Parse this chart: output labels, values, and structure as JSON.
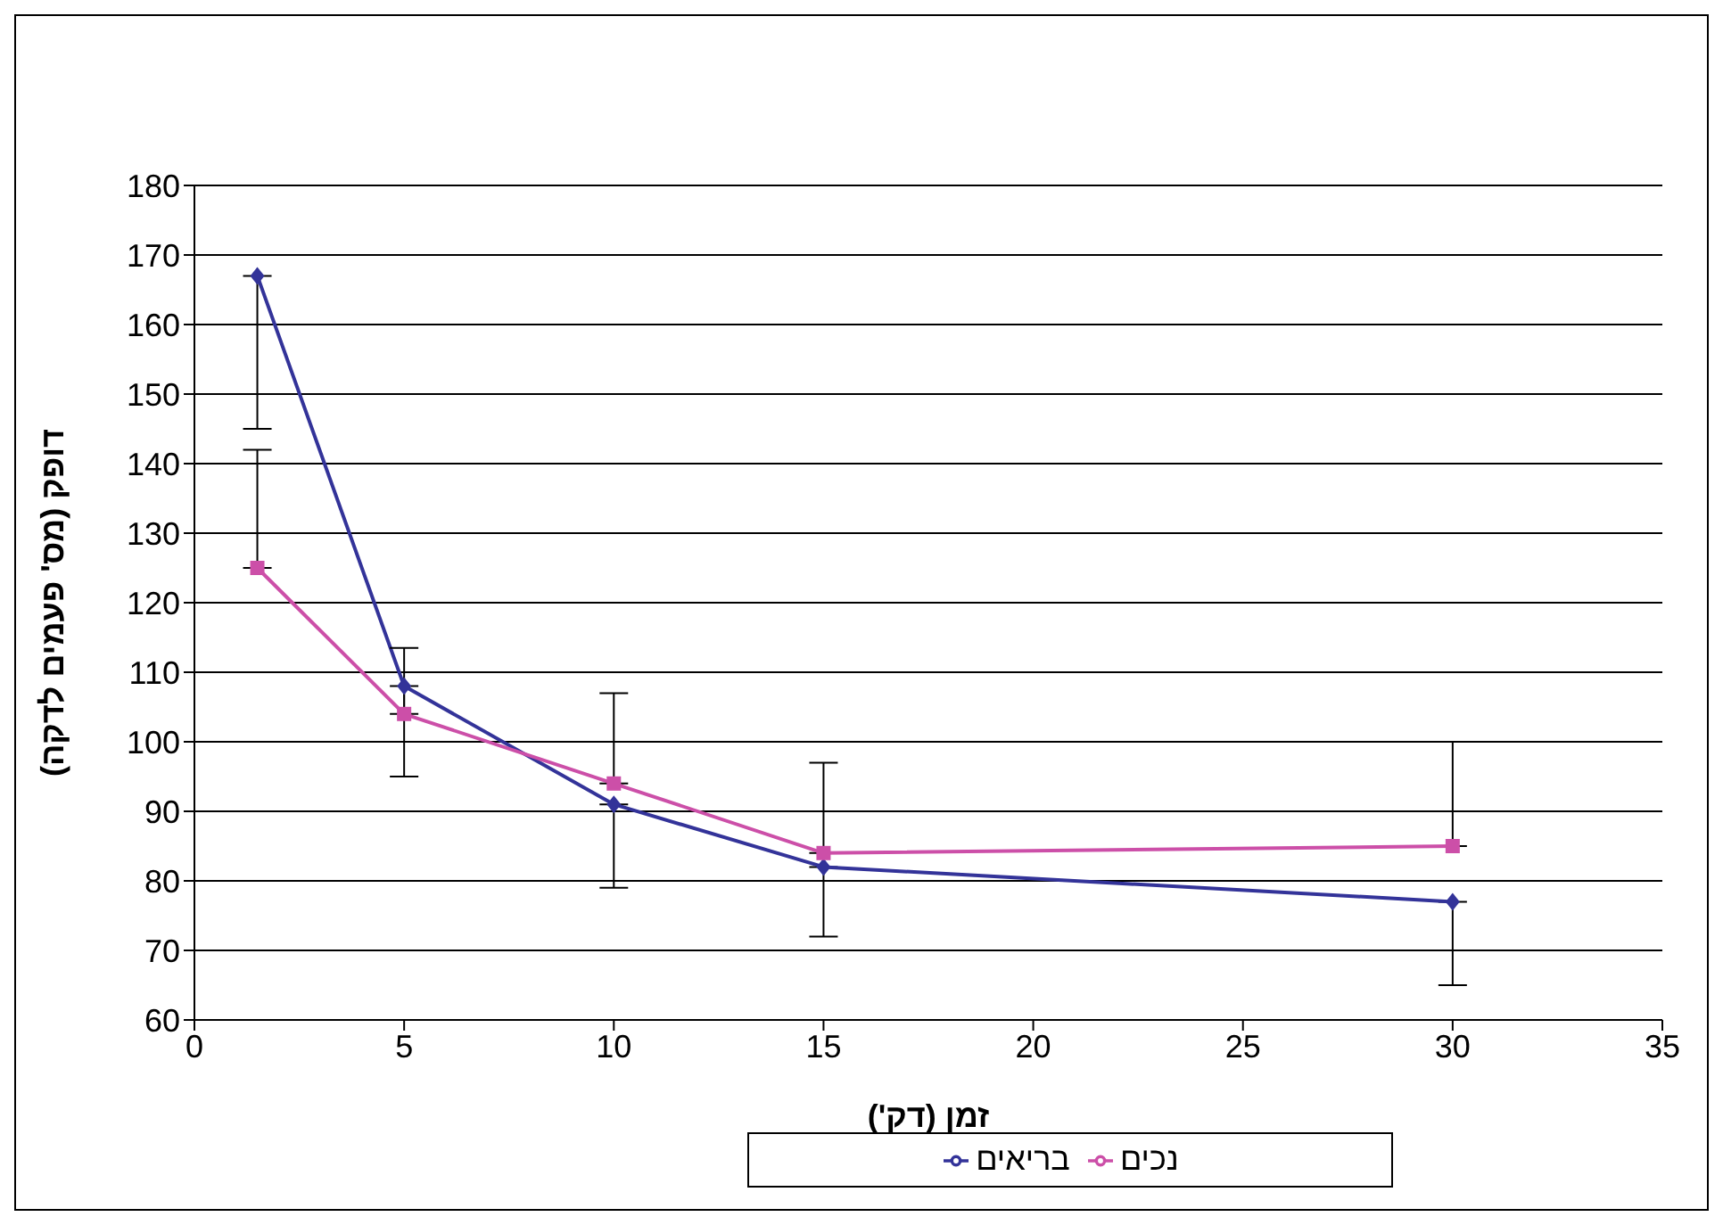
{
  "chart_data": {
    "type": "line",
    "xlabel": "זמן (דק')",
    "ylabel": "דופק (מס' פעמים לדקה)",
    "x": [
      1.5,
      5,
      10,
      15,
      30
    ],
    "series": [
      {
        "name": "בריאים",
        "color": "#333399",
        "marker": "diamond",
        "values": [
          167,
          108,
          91,
          82,
          77
        ],
        "errors": [
          [
            145,
            167
          ],
          [
            95,
            108
          ],
          [
            79,
            91
          ],
          [
            72,
            82
          ],
          [
            65,
            77
          ]
        ]
      },
      {
        "name": "נכים",
        "color": "#cc4fa8",
        "marker": "square",
        "values": [
          125,
          104,
          94,
          84,
          85
        ],
        "errors": [
          [
            125,
            142
          ],
          [
            104,
            113.5
          ],
          [
            94,
            107
          ],
          [
            84,
            97
          ],
          [
            85,
            100
          ]
        ]
      }
    ],
    "xlim": [
      0,
      35
    ],
    "xticks": [
      0,
      5,
      10,
      15,
      20,
      25,
      30,
      35
    ],
    "ylim": [
      60,
      180
    ],
    "yticks": [
      60,
      70,
      80,
      90,
      100,
      110,
      120,
      130,
      140,
      150,
      160,
      170,
      180
    ],
    "grid": "y",
    "legend": "bottom",
    "line_style": "solid"
  }
}
